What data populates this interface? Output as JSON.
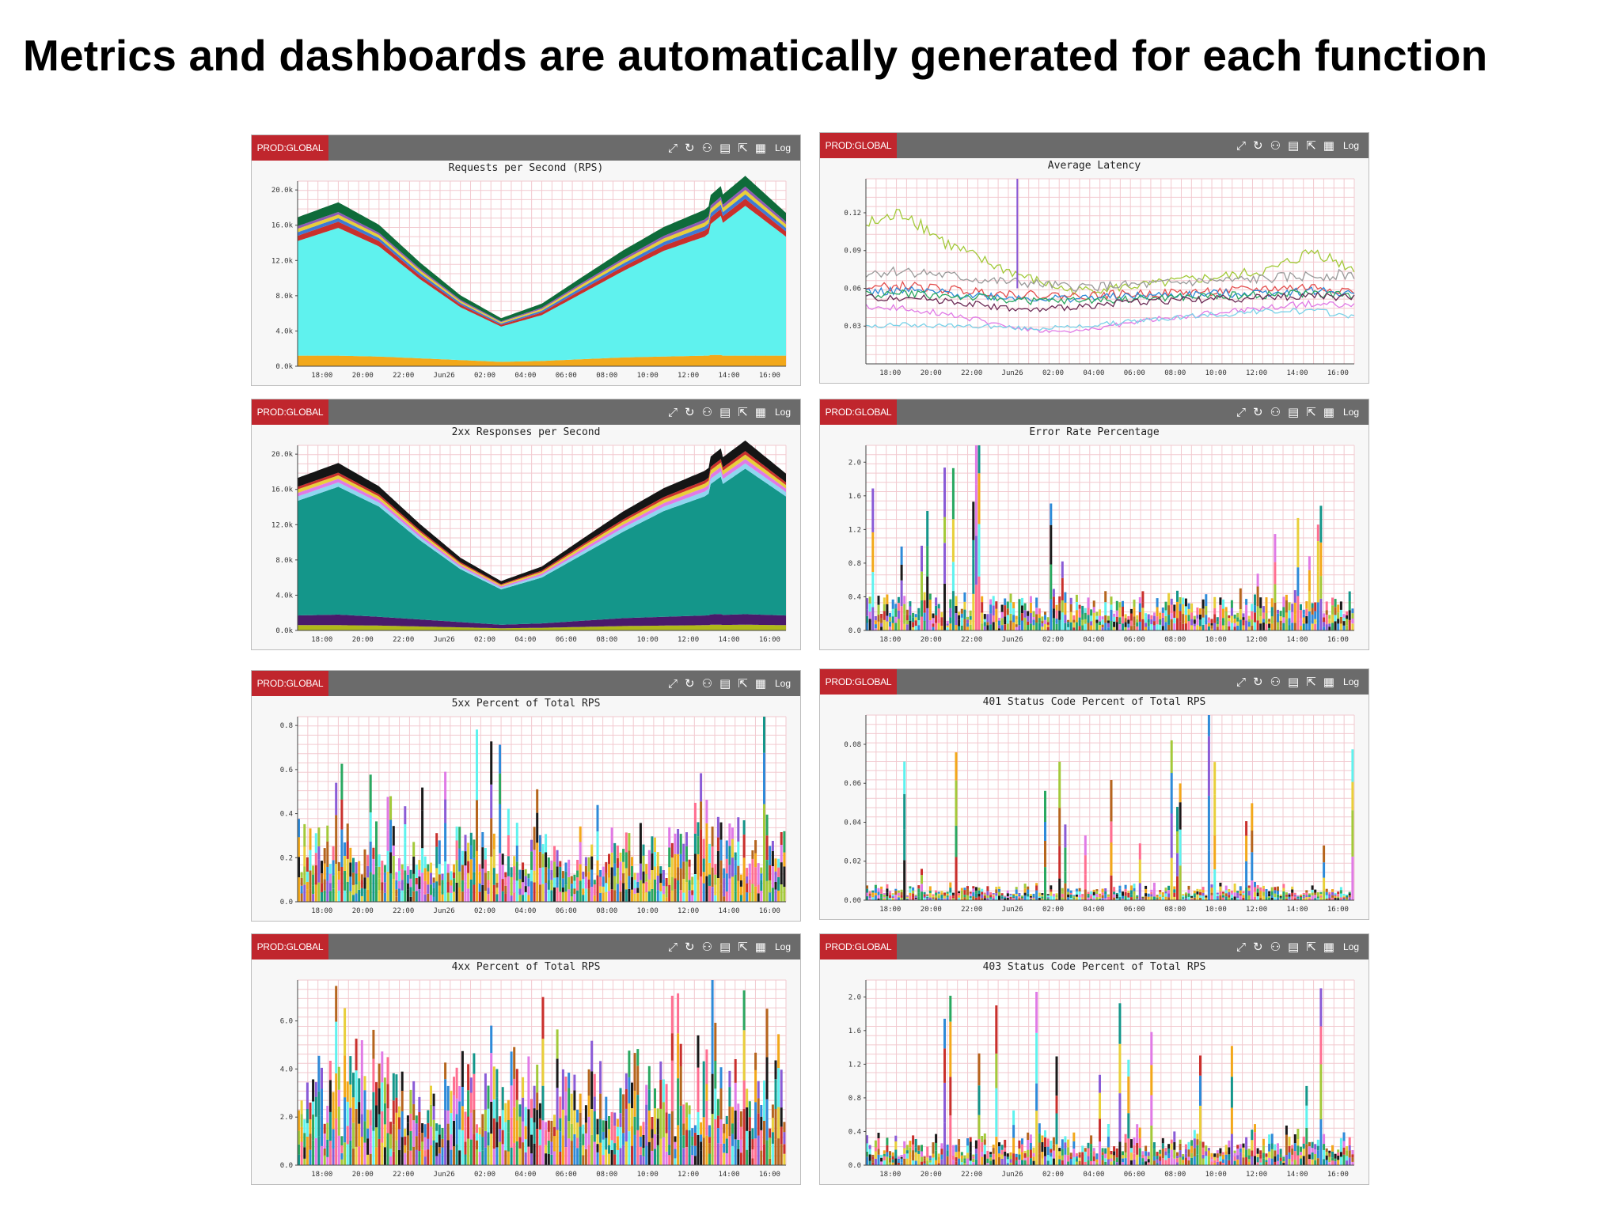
{
  "slide": {
    "title": "Metrics and dashboards are automatically generated for each function"
  },
  "toolbar": {
    "env_label": "PROD:GLOBAL",
    "log_label": "Log"
  },
  "chart_data": [
    {
      "id": "rps",
      "type": "area",
      "stacked": true,
      "title": "Requests per Second (RPS)",
      "x_ticks": [
        "18:00",
        "20:00",
        "22:00",
        "Jun26",
        "02:00",
        "04:00",
        "06:00",
        "08:00",
        "10:00",
        "12:00",
        "14:00",
        "16:00"
      ],
      "y_ticks": [
        "0.0k",
        "4.0k",
        "8.0k",
        "12.0k",
        "16.0k",
        "20.0k"
      ],
      "ylim": [
        0,
        21000
      ],
      "grid": true,
      "series": [
        {
          "color": "#f2a81a",
          "values": [
            1200,
            1200,
            1100,
            900,
            700,
            500,
            600,
            800,
            1000,
            1100,
            1200,
            1200,
            1200
          ]
        },
        {
          "color": "#5ff2ee",
          "values": [
            13000,
            14500,
            12500,
            9000,
            6000,
            4000,
            5200,
            7500,
            9800,
            12000,
            13500,
            17000,
            13500
          ]
        },
        {
          "color": "#c9302c",
          "values": [
            600,
            700,
            600,
            400,
            300,
            200,
            300,
            400,
            500,
            600,
            700,
            800,
            600
          ]
        },
        {
          "color": "#3e7bd6",
          "values": [
            400,
            400,
            350,
            300,
            200,
            150,
            200,
            300,
            350,
            400,
            450,
            500,
            400
          ]
        },
        {
          "color": "#e8cf3a",
          "values": [
            400,
            400,
            350,
            300,
            200,
            150,
            200,
            300,
            350,
            400,
            450,
            500,
            400
          ]
        },
        {
          "color": "#8e5bb5",
          "values": [
            300,
            300,
            250,
            200,
            150,
            100,
            150,
            200,
            250,
            300,
            350,
            400,
            300
          ]
        },
        {
          "color": "#0f6b3a",
          "values": [
            1000,
            1100,
            900,
            700,
            500,
            350,
            450,
            650,
            900,
            1000,
            1100,
            1200,
            1000
          ]
        }
      ]
    },
    {
      "id": "latency",
      "type": "line",
      "title": "Average Latency",
      "x_ticks": [
        "18:00",
        "20:00",
        "22:00",
        "Jun26",
        "02:00",
        "04:00",
        "06:00",
        "08:00",
        "10:00",
        "12:00",
        "14:00",
        "16:00"
      ],
      "y_ticks": [
        "0.03",
        "0.06",
        "0.09",
        "0.12"
      ],
      "ylim": [
        0,
        0.147
      ],
      "grid": true,
      "series": [
        {
          "color": "#a3c93a",
          "values": [
            0.11,
            0.12,
            0.095,
            0.08,
            0.068,
            0.058,
            0.06,
            0.063,
            0.067,
            0.07,
            0.075,
            0.09,
            0.075
          ]
        },
        {
          "color": "#9a9a9a",
          "values": [
            0.072,
            0.074,
            0.07,
            0.066,
            0.064,
            0.061,
            0.062,
            0.063,
            0.065,
            0.066,
            0.068,
            0.07,
            0.071
          ]
        },
        {
          "color": "#e44e4e",
          "values": [
            0.06,
            0.062,
            0.059,
            0.057,
            0.055,
            0.054,
            0.055,
            0.056,
            0.057,
            0.058,
            0.06,
            0.061,
            0.058
          ]
        },
        {
          "color": "#2e8ad8",
          "values": [
            0.057,
            0.058,
            0.056,
            0.054,
            0.052,
            0.052,
            0.053,
            0.054,
            0.055,
            0.056,
            0.057,
            0.058,
            0.056
          ]
        },
        {
          "color": "#2aa860",
          "values": [
            0.055,
            0.056,
            0.054,
            0.052,
            0.05,
            0.05,
            0.051,
            0.052,
            0.053,
            0.054,
            0.055,
            0.056,
            0.054
          ]
        },
        {
          "color": "#6b2a55",
          "values": [
            0.052,
            0.053,
            0.05,
            0.046,
            0.042,
            0.045,
            0.048,
            0.05,
            0.051,
            0.052,
            0.053,
            0.054,
            0.053
          ]
        },
        {
          "color": "#e07ae6",
          "values": [
            0.045,
            0.044,
            0.04,
            0.033,
            0.027,
            0.025,
            0.03,
            0.035,
            0.038,
            0.042,
            0.045,
            0.048,
            0.046
          ]
        },
        {
          "color": "#7ad2e8",
          "values": [
            0.03,
            0.031,
            0.03,
            0.03,
            0.028,
            0.029,
            0.032,
            0.035,
            0.038,
            0.04,
            0.042,
            0.042,
            0.038
          ]
        }
      ],
      "spikes": [
        {
          "x": 0.31,
          "value": 0.147,
          "color": "#8a5bd6"
        }
      ]
    },
    {
      "id": "2xx",
      "type": "area",
      "stacked": true,
      "title": "2xx Responses per Second",
      "x_ticks": [
        "18:00",
        "20:00",
        "22:00",
        "Jun26",
        "02:00",
        "04:00",
        "06:00",
        "08:00",
        "10:00",
        "12:00",
        "14:00",
        "16:00"
      ],
      "y_ticks": [
        "0.0k",
        "4.0k",
        "8.0k",
        "12.0k",
        "16.0k",
        "20.0k"
      ],
      "ylim": [
        0,
        21000
      ],
      "grid": true,
      "series": [
        {
          "color": "#b0b81a",
          "values": [
            600,
            600,
            550,
            450,
            350,
            250,
            300,
            400,
            500,
            550,
            600,
            650,
            600
          ]
        },
        {
          "color": "#4a1a6b",
          "values": [
            1100,
            1200,
            1000,
            800,
            600,
            400,
            500,
            700,
            900,
            1000,
            1100,
            1200,
            1100
          ]
        },
        {
          "color": "#14968a",
          "values": [
            13000,
            14500,
            12500,
            9000,
            6000,
            4000,
            5200,
            7500,
            9800,
            12000,
            13500,
            16500,
            13500
          ]
        },
        {
          "color": "#8fd6f0",
          "values": [
            500,
            500,
            450,
            350,
            250,
            200,
            250,
            350,
            450,
            500,
            550,
            600,
            500
          ]
        },
        {
          "color": "#e07ae6",
          "values": [
            400,
            400,
            350,
            300,
            200,
            150,
            200,
            300,
            350,
            400,
            450,
            500,
            400
          ]
        },
        {
          "color": "#e8cf3a",
          "values": [
            400,
            400,
            350,
            300,
            200,
            150,
            200,
            300,
            350,
            400,
            450,
            500,
            400
          ]
        },
        {
          "color": "#c9302c",
          "values": [
            300,
            300,
            250,
            200,
            150,
            100,
            150,
            200,
            250,
            300,
            350,
            400,
            300
          ]
        },
        {
          "color": "#151515",
          "values": [
            1000,
            1100,
            900,
            700,
            500,
            350,
            450,
            650,
            900,
            1000,
            1100,
            1200,
            1000
          ]
        }
      ]
    },
    {
      "id": "error_rate",
      "type": "bar",
      "title": "Error Rate Percentage",
      "x_ticks": [
        "18:00",
        "20:00",
        "22:00",
        "Jun26",
        "02:00",
        "04:00",
        "06:00",
        "08:00",
        "10:00",
        "12:00",
        "14:00",
        "16:00"
      ],
      "y_ticks": [
        "0.0",
        "0.4",
        "0.8",
        "1.2",
        "1.6",
        "2.0"
      ],
      "ylim": [
        0,
        2.2
      ],
      "grid": true,
      "noise": {
        "base": 0.35,
        "peak": 2.15,
        "seed": 11
      }
    },
    {
      "id": "5xx",
      "type": "bar",
      "title": "5xx Percent of Total RPS",
      "x_ticks": [
        "18:00",
        "20:00",
        "22:00",
        "Jun26",
        "02:00",
        "04:00",
        "06:00",
        "08:00",
        "10:00",
        "12:00",
        "14:00",
        "16:00"
      ],
      "y_ticks": [
        "0.0",
        "0.2",
        "0.4",
        "0.6",
        "0.8"
      ],
      "ylim": [
        0,
        0.84
      ],
      "grid": true,
      "noise": {
        "base": 0.28,
        "peak": 0.74,
        "seed": 23
      }
    },
    {
      "id": "401",
      "type": "bar",
      "title": "401 Status Code Percent of Total RPS",
      "x_ticks": [
        "18:00",
        "20:00",
        "22:00",
        "Jun26",
        "02:00",
        "04:00",
        "06:00",
        "08:00",
        "10:00",
        "12:00",
        "14:00",
        "16:00"
      ],
      "y_ticks": [
        "0.00",
        "0.02",
        "0.04",
        "0.06",
        "0.08"
      ],
      "ylim": [
        0,
        0.095
      ],
      "grid": true,
      "noise": {
        "base": 0.006,
        "peak": 0.092,
        "seed": 37
      }
    },
    {
      "id": "4xx",
      "type": "bar",
      "title": "4xx Percent of Total RPS",
      "x_ticks": [
        "18:00",
        "20:00",
        "22:00",
        "Jun26",
        "02:00",
        "04:00",
        "06:00",
        "08:00",
        "10:00",
        "12:00",
        "14:00",
        "16:00"
      ],
      "y_ticks": [
        "0.0",
        "2.0",
        "4.0",
        "6.0"
      ],
      "ylim": [
        0,
        7.7
      ],
      "grid": true,
      "noise": {
        "base": 3.6,
        "peak": 7.6,
        "seed": 51
      }
    },
    {
      "id": "403",
      "type": "bar",
      "title": "403 Status Code Percent of Total RPS",
      "x_ticks": [
        "18:00",
        "20:00",
        "22:00",
        "Jun26",
        "02:00",
        "04:00",
        "06:00",
        "08:00",
        "10:00",
        "12:00",
        "14:00",
        "16:00"
      ],
      "y_ticks": [
        "0.0",
        "0.4",
        "0.8",
        "1.2",
        "1.6",
        "2.0"
      ],
      "ylim": [
        0,
        2.2
      ],
      "grid": true,
      "noise": {
        "base": 0.3,
        "peak": 2.15,
        "seed": 67
      }
    }
  ]
}
